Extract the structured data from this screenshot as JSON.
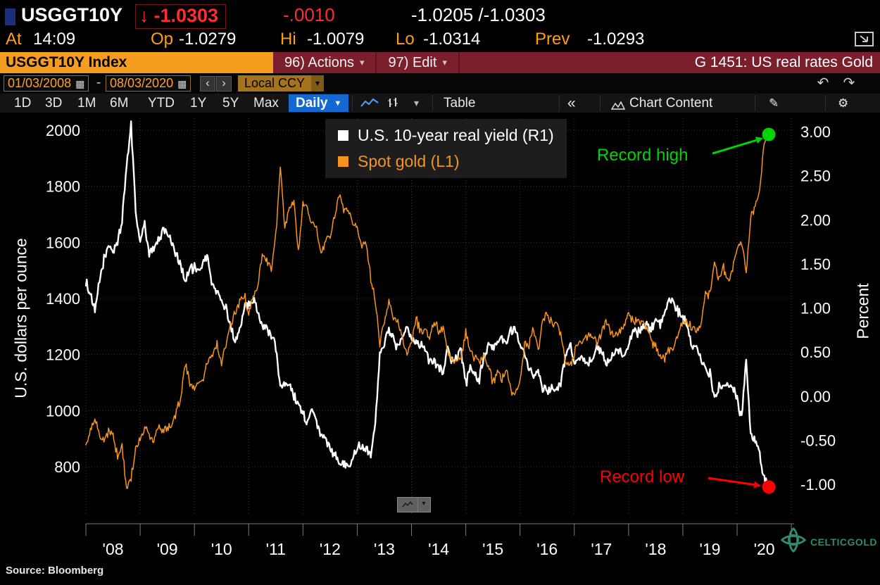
{
  "colors": {
    "accent_orange": "#f59d1f",
    "maroon_bar": "#7c1f2d",
    "blue_button": "#1468d2",
    "price_red": "#ff2d2d",
    "label_orange": "#ff9f0e",
    "watermark_green": "#2e8b6f"
  },
  "icons": {
    "down_arrow": "↓",
    "caret_down_small": "▾",
    "caret_down_solid": "▼",
    "chevron_left": "‹",
    "chevron_right": "›",
    "collapse_left": "«",
    "calendar": "▦",
    "undo": "↶",
    "redo": "↷",
    "gear": "⚙",
    "pencil": "✎"
  },
  "header": {
    "ticker": "USGGT10Y",
    "last": "-1.0303",
    "change": "-.0010",
    "bid_ask": "-1.0205 /-1.0303",
    "at_label": "At",
    "time": "14:09",
    "open_label": "Op",
    "open": "-1.0279",
    "high_label": "Hi",
    "high": "-1.0079",
    "low_label": "Lo",
    "low": "-1.0314",
    "prev_label": "Prev",
    "prev": "-1.0293"
  },
  "titlebar": {
    "security": "USGGT10Y Index",
    "actions_label": "96) Actions",
    "edit_label": "97) Edit",
    "chart_title": "G 1451: US real rates Gold"
  },
  "rangebar": {
    "start_date": "01/03/2008",
    "separator": "-",
    "end_date": "08/03/2020",
    "currency": "Local CCY"
  },
  "toolbar": {
    "periods": [
      "1D",
      "3D",
      "1M",
      "6M",
      "YTD",
      "1Y",
      "5Y",
      "Max"
    ],
    "frequency": "Daily",
    "table_label": "Table",
    "chart_content_label": "Chart Content"
  },
  "footer": {
    "source": "Source:  Bloomberg",
    "watermark": "CELTICGOLD"
  },
  "chart_data": {
    "type": "line",
    "title": "G 1451: US real rates Gold",
    "x_start": "2008-01",
    "x_end": "2020-08",
    "x_interval": "monthly",
    "x_tick_labels": [
      "'08",
      "'09",
      "'10",
      "'11",
      "'12",
      "'13",
      "'14",
      "'15",
      "'16",
      "'17",
      "'18",
      "'19",
      "'20"
    ],
    "left_axis": {
      "title": "U.S. dollars per ounce",
      "ticks": [
        2000,
        1800,
        1600,
        1400,
        1200,
        1000,
        800
      ],
      "range": [
        630,
        2045
      ]
    },
    "right_axis": {
      "title": "Percent",
      "ticks": [
        3.0,
        2.5,
        2.0,
        1.5,
        1.0,
        0.5,
        0.0,
        -0.5,
        -1.0
      ],
      "range": [
        -1.17,
        3.16
      ]
    },
    "grid": true,
    "legend_position": "top-center",
    "series": [
      {
        "name": "U.S. 10-year real yield (R1)",
        "axis": "right",
        "color": "#ffffff",
        "values": [
          1.3,
          1.15,
          0.95,
          1.3,
          1.55,
          1.7,
          1.65,
          1.75,
          2.0,
          2.6,
          3.1,
          2.1,
          1.75,
          1.95,
          1.6,
          1.7,
          1.75,
          1.9,
          1.85,
          1.75,
          1.6,
          1.5,
          1.3,
          1.45,
          1.45,
          1.4,
          1.55,
          1.55,
          1.25,
          1.2,
          1.05,
          1.0,
          0.8,
          0.6,
          0.75,
          1.0,
          1.05,
          1.1,
          0.95,
          0.8,
          0.75,
          0.7,
          0.55,
          0.1,
          0.15,
          0.15,
          0.0,
          -0.1,
          -0.2,
          -0.3,
          -0.15,
          -0.3,
          -0.45,
          -0.5,
          -0.6,
          -0.65,
          -0.75,
          -0.75,
          -0.8,
          -0.7,
          -0.6,
          -0.55,
          -0.6,
          -0.65,
          -0.3,
          0.5,
          0.6,
          0.75,
          0.65,
          0.55,
          0.7,
          0.8,
          0.65,
          0.6,
          0.6,
          0.55,
          0.4,
          0.4,
          0.35,
          0.25,
          0.55,
          0.4,
          0.45,
          0.5,
          0.15,
          0.3,
          0.25,
          0.2,
          0.45,
          0.55,
          0.55,
          0.6,
          0.65,
          0.6,
          0.75,
          0.75,
          0.6,
          0.45,
          0.3,
          0.25,
          0.3,
          0.1,
          0.05,
          0.1,
          0.05,
          0.15,
          0.45,
          0.6,
          0.4,
          0.45,
          0.45,
          0.4,
          0.4,
          0.55,
          0.5,
          0.35,
          0.45,
          0.5,
          0.5,
          0.45,
          0.55,
          0.75,
          0.7,
          0.8,
          0.8,
          0.75,
          0.85,
          0.8,
          0.9,
          1.1,
          1.05,
          0.95,
          0.9,
          0.8,
          0.55,
          0.6,
          0.4,
          0.3,
          0.25,
          -0.05,
          0.1,
          0.15,
          0.15,
          0.1,
          -0.05,
          -0.25,
          0.45,
          -0.45,
          -0.5,
          -0.65,
          -0.95,
          -1.03
        ]
      },
      {
        "name": "Spot gold (L1)",
        "axis": "left",
        "color": "#f7941d",
        "values": [
          890,
          925,
          975,
          910,
          885,
          925,
          915,
          835,
          870,
          725,
          760,
          865,
          895,
          940,
          920,
          885,
          945,
          930,
          935,
          950,
          995,
          1045,
          1175,
          1095,
          1080,
          1110,
          1115,
          1180,
          1205,
          1240,
          1170,
          1245,
          1310,
          1345,
          1385,
          1420,
          1335,
          1410,
          1440,
          1565,
          1535,
          1505,
          1630,
          1870,
          1650,
          1720,
          1745,
          1565,
          1740,
          1720,
          1670,
          1660,
          1560,
          1600,
          1615,
          1690,
          1770,
          1720,
          1715,
          1675,
          1660,
          1580,
          1595,
          1470,
          1390,
          1230,
          1310,
          1395,
          1330,
          1320,
          1250,
          1205,
          1245,
          1325,
          1285,
          1290,
          1250,
          1325,
          1285,
          1285,
          1210,
          1170,
          1180,
          1185,
          1285,
          1215,
          1185,
          1180,
          1190,
          1170,
          1095,
          1135,
          1115,
          1140,
          1065,
          1060,
          1115,
          1235,
          1235,
          1290,
          1215,
          1320,
          1350,
          1310,
          1315,
          1275,
          1175,
          1150,
          1210,
          1250,
          1245,
          1265,
          1270,
          1240,
          1270,
          1320,
          1280,
          1270,
          1275,
          1300,
          1345,
          1320,
          1325,
          1315,
          1300,
          1250,
          1225,
          1200,
          1190,
          1215,
          1220,
          1280,
          1320,
          1315,
          1290,
          1285,
          1305,
          1410,
          1415,
          1520,
          1470,
          1510,
          1460,
          1515,
          1585,
          1600,
          1500,
          1690,
          1730,
          1780,
          1960,
          1985
        ]
      }
    ],
    "markers": [
      {
        "label": "Record high",
        "series": "Spot gold (L1)",
        "date": "2020-08",
        "value": 1985,
        "color": "#00d400"
      },
      {
        "label": "Record low",
        "series": "U.S. 10-year real yield (R1)",
        "date": "2020-08",
        "value": -1.03,
        "color": "#ff0000"
      }
    ]
  }
}
